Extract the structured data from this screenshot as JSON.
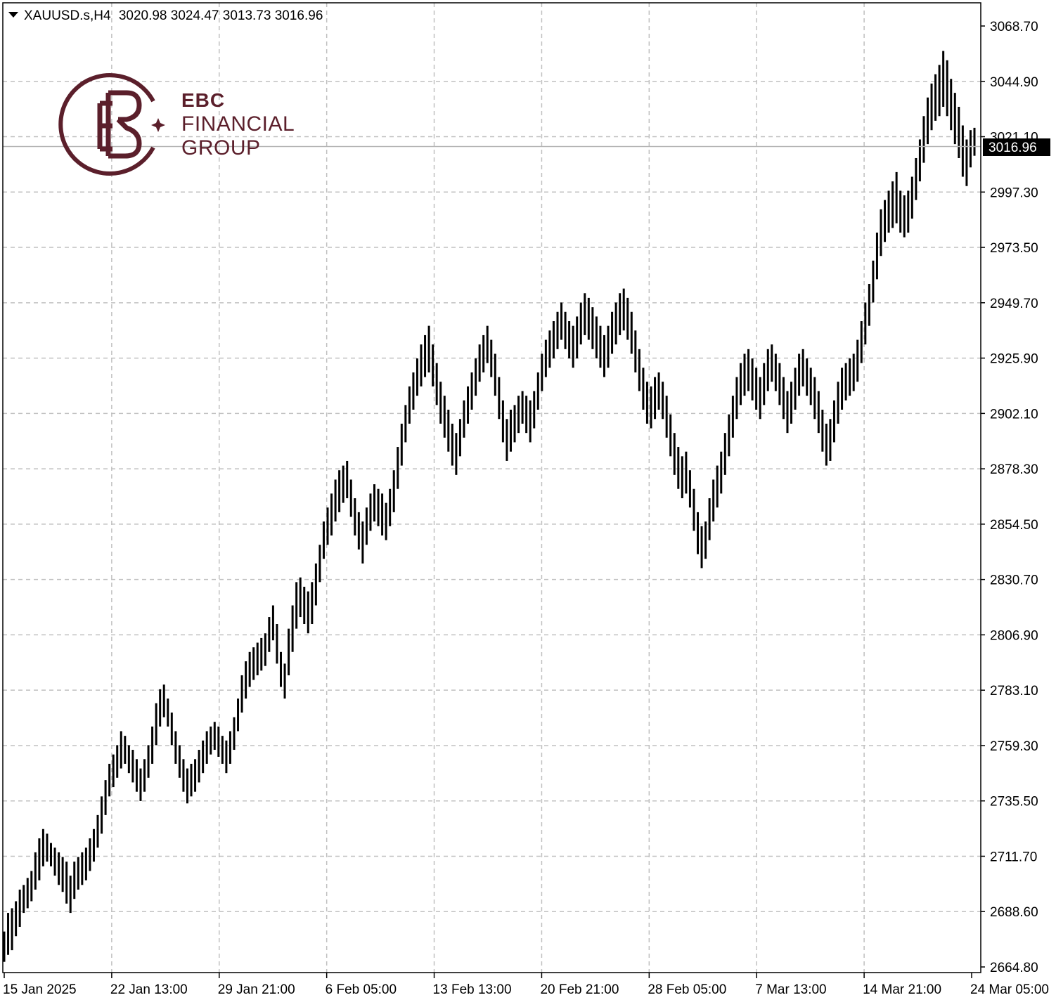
{
  "header": {
    "symbol": "XAUUSD.s,H4",
    "open": "3020.98",
    "high": "3024.47",
    "low": "3013.73",
    "close": "3016.96"
  },
  "logo": {
    "line1": "EBC",
    "line2": "FINANCIAL",
    "line3": "GROUP",
    "color": "#5b1f2b"
  },
  "current_price_label": "3016.96",
  "chart_data": {
    "type": "ohlc-bar",
    "symbol": "XAUUSD.s",
    "timeframe": "H4",
    "ylim": [
      2664.8,
      3068.7
    ],
    "y_ticks": [
      "3068.70",
      "3044.90",
      "3021.10",
      "2997.30",
      "2973.50",
      "2949.70",
      "2925.90",
      "2902.10",
      "2878.30",
      "2854.50",
      "2830.70",
      "2806.90",
      "2783.10",
      "2759.30",
      "2735.50",
      "2711.70",
      "2688.60",
      "2664.80"
    ],
    "x_ticks": [
      "15 Jan 2025",
      "22 Jan 13:00",
      "29 Jan 21:00",
      "6 Feb 05:00",
      "13 Feb 13:00",
      "20 Feb 21:00",
      "28 Feb 05:00",
      "7 Mar 13:00",
      "14 Mar 21:00",
      "24 Mar 05:00"
    ],
    "grid": true,
    "current_price": 3016.96,
    "bar_color": "#000000",
    "grid_color": "#c0c0c0",
    "hl": [
      [
        2667,
        2680
      ],
      [
        2670,
        2688
      ],
      [
        2672,
        2690
      ],
      [
        2678,
        2693
      ],
      [
        2682,
        2698
      ],
      [
        2688,
        2700
      ],
      [
        2690,
        2703
      ],
      [
        2693,
        2706
      ],
      [
        2698,
        2714
      ],
      [
        2702,
        2720
      ],
      [
        2708,
        2724
      ],
      [
        2710,
        2722
      ],
      [
        2708,
        2718
      ],
      [
        2704,
        2716
      ],
      [
        2700,
        2714
      ],
      [
        2697,
        2712
      ],
      [
        2692,
        2710
      ],
      [
        2688,
        2704
      ],
      [
        2694,
        2710
      ],
      [
        2698,
        2712
      ],
      [
        2700,
        2714
      ],
      [
        2702,
        2716
      ],
      [
        2706,
        2720
      ],
      [
        2710,
        2724
      ],
      [
        2716,
        2730
      ],
      [
        2722,
        2738
      ],
      [
        2730,
        2745
      ],
      [
        2738,
        2752
      ],
      [
        2742,
        2756
      ],
      [
        2746,
        2760
      ],
      [
        2750,
        2766
      ],
      [
        2752,
        2764
      ],
      [
        2748,
        2760
      ],
      [
        2744,
        2758
      ],
      [
        2740,
        2754
      ],
      [
        2736,
        2750
      ],
      [
        2740,
        2754
      ],
      [
        2746,
        2760
      ],
      [
        2752,
        2768
      ],
      [
        2760,
        2778
      ],
      [
        2768,
        2784
      ],
      [
        2772,
        2786
      ],
      [
        2768,
        2780
      ],
      [
        2760,
        2774
      ],
      [
        2752,
        2766
      ],
      [
        2746,
        2760
      ],
      [
        2740,
        2754
      ],
      [
        2735,
        2750
      ],
      [
        2738,
        2752
      ],
      [
        2740,
        2754
      ],
      [
        2744,
        2758
      ],
      [
        2748,
        2762
      ],
      [
        2752,
        2766
      ],
      [
        2756,
        2768
      ],
      [
        2758,
        2770
      ],
      [
        2755,
        2768
      ],
      [
        2752,
        2764
      ],
      [
        2748,
        2762
      ],
      [
        2752,
        2766
      ],
      [
        2758,
        2772
      ],
      [
        2766,
        2780
      ],
      [
        2774,
        2790
      ],
      [
        2780,
        2796
      ],
      [
        2785,
        2800
      ],
      [
        2788,
        2802
      ],
      [
        2790,
        2804
      ],
      [
        2792,
        2806
      ],
      [
        2794,
        2808
      ],
      [
        2800,
        2815
      ],
      [
        2805,
        2820
      ],
      [
        2795,
        2812
      ],
      [
        2785,
        2800
      ],
      [
        2780,
        2795
      ],
      [
        2790,
        2810
      ],
      [
        2800,
        2820
      ],
      [
        2810,
        2830
      ],
      [
        2815,
        2832
      ],
      [
        2812,
        2828
      ],
      [
        2808,
        2826
      ],
      [
        2812,
        2830
      ],
      [
        2820,
        2838
      ],
      [
        2830,
        2846
      ],
      [
        2840,
        2856
      ],
      [
        2846,
        2862
      ],
      [
        2850,
        2868
      ],
      [
        2856,
        2874
      ],
      [
        2860,
        2878
      ],
      [
        2864,
        2880
      ],
      [
        2866,
        2882
      ],
      [
        2858,
        2874
      ],
      [
        2850,
        2866
      ],
      [
        2844,
        2860
      ],
      [
        2838,
        2856
      ],
      [
        2846,
        2862
      ],
      [
        2852,
        2868
      ],
      [
        2856,
        2872
      ],
      [
        2854,
        2870
      ],
      [
        2850,
        2868
      ],
      [
        2848,
        2864
      ],
      [
        2854,
        2870
      ],
      [
        2860,
        2878
      ],
      [
        2870,
        2888
      ],
      [
        2880,
        2898
      ],
      [
        2890,
        2906
      ],
      [
        2898,
        2914
      ],
      [
        2904,
        2920
      ],
      [
        2910,
        2926
      ],
      [
        2914,
        2932
      ],
      [
        2918,
        2936
      ],
      [
        2920,
        2940
      ],
      [
        2914,
        2932
      ],
      [
        2906,
        2924
      ],
      [
        2898,
        2916
      ],
      [
        2892,
        2910
      ],
      [
        2886,
        2904
      ],
      [
        2880,
        2898
      ],
      [
        2876,
        2894
      ],
      [
        2884,
        2900
      ],
      [
        2892,
        2908
      ],
      [
        2898,
        2914
      ],
      [
        2904,
        2920
      ],
      [
        2910,
        2926
      ],
      [
        2916,
        2932
      ],
      [
        2920,
        2936
      ],
      [
        2924,
        2940
      ],
      [
        2918,
        2934
      ],
      [
        2910,
        2928
      ],
      [
        2900,
        2918
      ],
      [
        2890,
        2908
      ],
      [
        2882,
        2900
      ],
      [
        2886,
        2904
      ],
      [
        2890,
        2906
      ],
      [
        2894,
        2910
      ],
      [
        2898,
        2912
      ],
      [
        2894,
        2910
      ],
      [
        2890,
        2908
      ],
      [
        2896,
        2912
      ],
      [
        2904,
        2920
      ],
      [
        2912,
        2928
      ],
      [
        2918,
        2934
      ],
      [
        2922,
        2938
      ],
      [
        2926,
        2942
      ],
      [
        2930,
        2946
      ],
      [
        2934,
        2950
      ],
      [
        2930,
        2946
      ],
      [
        2926,
        2942
      ],
      [
        2922,
        2940
      ],
      [
        2926,
        2944
      ],
      [
        2932,
        2950
      ],
      [
        2936,
        2954
      ],
      [
        2934,
        2952
      ],
      [
        2930,
        2948
      ],
      [
        2926,
        2944
      ],
      [
        2922,
        2940
      ],
      [
        2918,
        2936
      ],
      [
        2922,
        2940
      ],
      [
        2928,
        2946
      ],
      [
        2932,
        2950
      ],
      [
        2936,
        2954
      ],
      [
        2938,
        2956
      ],
      [
        2934,
        2952
      ],
      [
        2928,
        2946
      ],
      [
        2920,
        2938
      ],
      [
        2912,
        2930
      ],
      [
        2904,
        2922
      ],
      [
        2898,
        2916
      ],
      [
        2896,
        2914
      ],
      [
        2900,
        2918
      ],
      [
        2904,
        2920
      ],
      [
        2900,
        2916
      ],
      [
        2892,
        2910
      ],
      [
        2884,
        2902
      ],
      [
        2876,
        2894
      ],
      [
        2870,
        2888
      ],
      [
        2866,
        2884
      ],
      [
        2868,
        2886
      ],
      [
        2862,
        2878
      ],
      [
        2852,
        2870
      ],
      [
        2842,
        2860
      ],
      [
        2836,
        2854
      ],
      [
        2840,
        2856
      ],
      [
        2848,
        2866
      ],
      [
        2856,
        2874
      ],
      [
        2862,
        2880
      ],
      [
        2868,
        2886
      ],
      [
        2876,
        2894
      ],
      [
        2884,
        2902
      ],
      [
        2892,
        2910
      ],
      [
        2900,
        2918
      ],
      [
        2906,
        2924
      ],
      [
        2910,
        2928
      ],
      [
        2912,
        2930
      ],
      [
        2908,
        2926
      ],
      [
        2904,
        2922
      ],
      [
        2900,
        2918
      ],
      [
        2906,
        2924
      ],
      [
        2912,
        2930
      ],
      [
        2916,
        2932
      ],
      [
        2912,
        2928
      ],
      [
        2906,
        2924
      ],
      [
        2900,
        2918
      ],
      [
        2894,
        2912
      ],
      [
        2898,
        2916
      ],
      [
        2904,
        2922
      ],
      [
        2910,
        2928
      ],
      [
        2914,
        2930
      ],
      [
        2910,
        2926
      ],
      [
        2906,
        2922
      ],
      [
        2900,
        2918
      ],
      [
        2894,
        2912
      ],
      [
        2886,
        2904
      ],
      [
        2880,
        2898
      ],
      [
        2882,
        2900
      ],
      [
        2890,
        2908
      ],
      [
        2898,
        2916
      ],
      [
        2904,
        2922
      ],
      [
        2908,
        2924
      ],
      [
        2910,
        2926
      ],
      [
        2912,
        2928
      ],
      [
        2916,
        2934
      ],
      [
        2924,
        2942
      ],
      [
        2932,
        2950
      ],
      [
        2940,
        2958
      ],
      [
        2950,
        2968
      ],
      [
        2960,
        2980
      ],
      [
        2970,
        2990
      ],
      [
        2976,
        2994
      ],
      [
        2980,
        2998
      ],
      [
        2982,
        3002
      ],
      [
        2984,
        3006
      ],
      [
        2980,
        2998
      ],
      [
        2978,
        2996
      ],
      [
        2980,
        2998
      ],
      [
        2986,
        3004
      ],
      [
        2994,
        3012
      ],
      [
        3002,
        3020
      ],
      [
        3010,
        3030
      ],
      [
        3018,
        3038
      ],
      [
        3024,
        3044
      ],
      [
        3028,
        3048
      ],
      [
        3030,
        3052
      ],
      [
        3034,
        3058
      ],
      [
        3030,
        3054
      ],
      [
        3024,
        3046
      ],
      [
        3018,
        3040
      ],
      [
        3012,
        3034
      ],
      [
        3004,
        3026
      ],
      [
        3000,
        3020
      ],
      [
        3008,
        3024
      ],
      [
        3013,
        3025
      ]
    ]
  }
}
